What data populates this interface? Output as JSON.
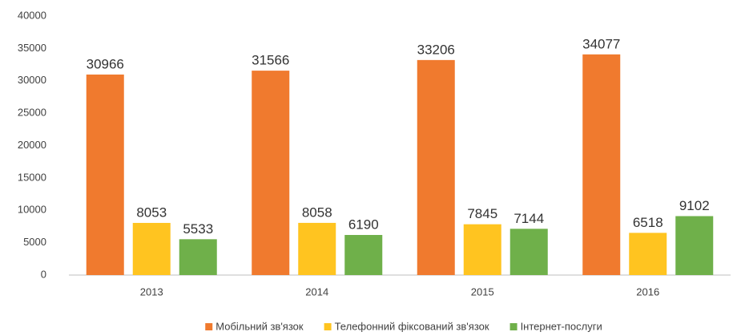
{
  "chart_data": {
    "type": "bar",
    "categories": [
      "2013",
      "2014",
      "2015",
      "2016"
    ],
    "series": [
      {
        "name": "Мобільний зв'язок",
        "color": "#f07a2e",
        "values": [
          30966,
          31566,
          33206,
          34077
        ]
      },
      {
        "name": "Телефонний фіксований зв'язок",
        "color": "#ffc420",
        "values": [
          8053,
          8058,
          7845,
          6518
        ]
      },
      {
        "name": "Інтернет-послуги",
        "color": "#6fb04a",
        "values": [
          5533,
          6190,
          7144,
          9102
        ]
      }
    ],
    "ylim": [
      0,
      40000
    ],
    "yticks": [
      0,
      5000,
      10000,
      15000,
      20000,
      25000,
      30000,
      35000,
      40000
    ],
    "grid": false,
    "legend": "bottom"
  }
}
